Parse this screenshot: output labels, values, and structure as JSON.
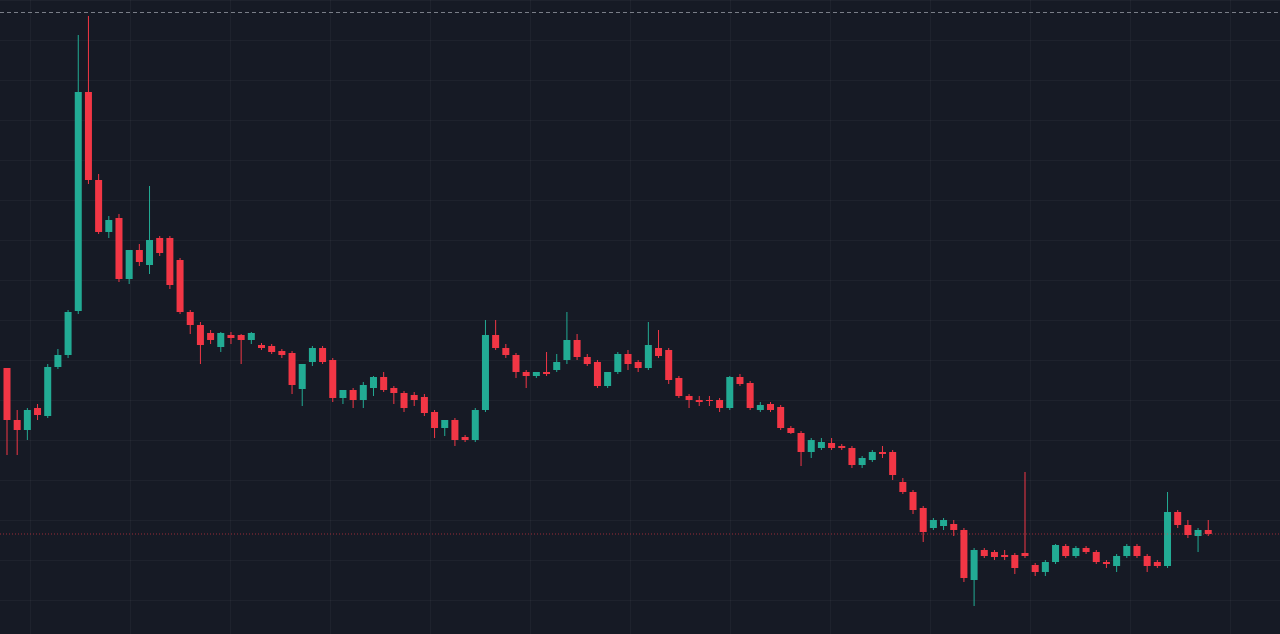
{
  "chart_data": {
    "type": "candlestick",
    "up_color": "#22ab94",
    "down_color": "#f23645",
    "ylim": [
      0,
      634
    ],
    "ohlc": [
      [
        266,
        266,
        179,
        214
      ],
      [
        214,
        224,
        179,
        204
      ],
      [
        204,
        226,
        194,
        224
      ],
      [
        226,
        230,
        214,
        219
      ],
      [
        218,
        270,
        216,
        267
      ],
      [
        267,
        285,
        265,
        279
      ],
      [
        279,
        324,
        276,
        322
      ],
      [
        323,
        599,
        320,
        542
      ],
      [
        542,
        618,
        450,
        454
      ],
      [
        454,
        460,
        400,
        402
      ],
      [
        402,
        418,
        396,
        414
      ],
      [
        416,
        420,
        352,
        355
      ],
      [
        355,
        384,
        350,
        384
      ],
      [
        384,
        390,
        368,
        372
      ],
      [
        369,
        448,
        360,
        394
      ],
      [
        396,
        398,
        378,
        381
      ],
      [
        396,
        398,
        345,
        349
      ],
      [
        374,
        376,
        320,
        322
      ],
      [
        322,
        324,
        300,
        309
      ],
      [
        309,
        312,
        270,
        289
      ],
      [
        301,
        304,
        290,
        294
      ],
      [
        287,
        302,
        282,
        301
      ],
      [
        299,
        302,
        290,
        296
      ],
      [
        299,
        300,
        270,
        294
      ],
      [
        294,
        302,
        290,
        301
      ],
      [
        289,
        291,
        284,
        286
      ],
      [
        288,
        290,
        280,
        282
      ],
      [
        283,
        285,
        276,
        279
      ],
      [
        281,
        283,
        240,
        249
      ],
      [
        245,
        270,
        228,
        270
      ],
      [
        272,
        288,
        268,
        286
      ],
      [
        286,
        288,
        270,
        272
      ],
      [
        274,
        276,
        232,
        236
      ],
      [
        236,
        244,
        230,
        244
      ],
      [
        244,
        246,
        226,
        234
      ],
      [
        234,
        252,
        226,
        249
      ],
      [
        246,
        258,
        238,
        257
      ],
      [
        257,
        262,
        242,
        244
      ],
      [
        246,
        248,
        230,
        241
      ],
      [
        241,
        243,
        222,
        226
      ],
      [
        239,
        242,
        228,
        234
      ],
      [
        237,
        240,
        218,
        221
      ],
      [
        222,
        224,
        196,
        206
      ],
      [
        206,
        214,
        198,
        214
      ],
      [
        214,
        216,
        188,
        194
      ],
      [
        197,
        199,
        192,
        194
      ],
      [
        194,
        226,
        192,
        224
      ],
      [
        224,
        314,
        222,
        299
      ],
      [
        299,
        314,
        284,
        286
      ],
      [
        286,
        290,
        276,
        279
      ],
      [
        279,
        281,
        256,
        262
      ],
      [
        262,
        264,
        246,
        258
      ],
      [
        258,
        262,
        256,
        262
      ],
      [
        262,
        282,
        258,
        260
      ],
      [
        264,
        280,
        262,
        272
      ],
      [
        274,
        322,
        270,
        294
      ],
      [
        294,
        300,
        274,
        277
      ],
      [
        277,
        280,
        268,
        270
      ],
      [
        272,
        274,
        246,
        248
      ],
      [
        248,
        262,
        246,
        262
      ],
      [
        262,
        282,
        260,
        280
      ],
      [
        280,
        284,
        264,
        270
      ],
      [
        272,
        274,
        262,
        266
      ],
      [
        266,
        312,
        264,
        289
      ],
      [
        286,
        304,
        276,
        278
      ],
      [
        284,
        286,
        250,
        254
      ],
      [
        256,
        258,
        236,
        238
      ],
      [
        238,
        240,
        226,
        234
      ],
      [
        234,
        238,
        228,
        232
      ],
      [
        234,
        238,
        228,
        233
      ],
      [
        234,
        236,
        222,
        226
      ],
      [
        226,
        258,
        224,
        257
      ],
      [
        257,
        260,
        248,
        250
      ],
      [
        251,
        253,
        224,
        226
      ],
      [
        224,
        232,
        222,
        229
      ],
      [
        230,
        232,
        222,
        224
      ],
      [
        227,
        229,
        204,
        206
      ],
      [
        206,
        208,
        200,
        201
      ],
      [
        201,
        203,
        168,
        182
      ],
      [
        182,
        196,
        176,
        194
      ],
      [
        186,
        196,
        184,
        192
      ],
      [
        191,
        196,
        184,
        186
      ],
      [
        188,
        190,
        184,
        186
      ],
      [
        186,
        188,
        166,
        169
      ],
      [
        169,
        178,
        166,
        176
      ],
      [
        174,
        184,
        172,
        182
      ],
      [
        182,
        188,
        176,
        180
      ],
      [
        182,
        184,
        154,
        159
      ],
      [
        152,
        156,
        140,
        142
      ],
      [
        142,
        144,
        120,
        124
      ],
      [
        126,
        128,
        92,
        102
      ],
      [
        106,
        116,
        104,
        114
      ],
      [
        108,
        116,
        104,
        114
      ],
      [
        110,
        114,
        98,
        104
      ],
      [
        104,
        106,
        52,
        56
      ],
      [
        54,
        86,
        28,
        84
      ],
      [
        84,
        86,
        76,
        78
      ],
      [
        82,
        84,
        74,
        77
      ],
      [
        79,
        84,
        74,
        77
      ],
      [
        79,
        81,
        60,
        66
      ],
      [
        81,
        162,
        76,
        78
      ],
      [
        69,
        71,
        58,
        62
      ],
      [
        62,
        74,
        58,
        72
      ],
      [
        72,
        90,
        70,
        89
      ],
      [
        88,
        90,
        76,
        78
      ],
      [
        78,
        88,
        76,
        86
      ],
      [
        86,
        88,
        80,
        82
      ],
      [
        82,
        84,
        70,
        72
      ],
      [
        72,
        74,
        66,
        70
      ],
      [
        68,
        80,
        62,
        78
      ],
      [
        78,
        90,
        76,
        88
      ],
      [
        88,
        90,
        76,
        78
      ],
      [
        78,
        80,
        62,
        68
      ],
      [
        72,
        74,
        66,
        68
      ],
      [
        68,
        142,
        66,
        122
      ],
      [
        122,
        124,
        106,
        109
      ],
      [
        109,
        114,
        96,
        99
      ],
      [
        98,
        106,
        82,
        104
      ],
      [
        104,
        114,
        98,
        100
      ]
    ]
  }
}
